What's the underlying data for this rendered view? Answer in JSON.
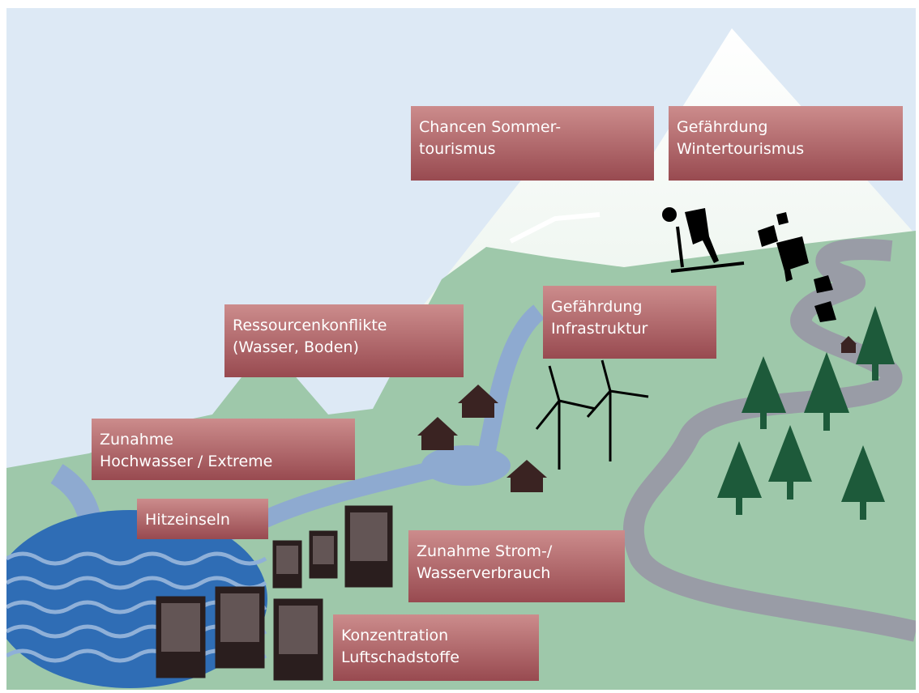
{
  "labels": [
    {
      "lines": [
        "Chancen Sommer-",
        "tourismus"
      ]
    },
    {
      "lines": [
        "Gefährdung",
        "Wintertourismus"
      ]
    },
    {
      "lines": [
        "Ressourcenkonflikte",
        "(Wasser, Boden)"
      ]
    },
    {
      "lines": [
        "Gefährdung",
        "Infrastruktur"
      ]
    },
    {
      "lines": [
        "Zunahme",
        "Hochwasser / Extreme"
      ]
    },
    {
      "lines": [
        "Hitzeinseln"
      ]
    },
    {
      "lines": [
        "Zunahme Strom-/",
        "Wasserverbrauch"
      ]
    },
    {
      "lines": [
        "Konzentration",
        "Luftschadstoffe"
      ]
    }
  ]
}
